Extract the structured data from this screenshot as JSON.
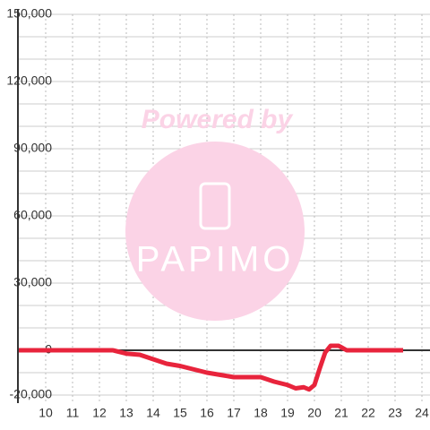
{
  "chart_data": {
    "type": "line",
    "watermark": {
      "line1": "Powered by",
      "line2": "PAPIMO"
    },
    "x": [
      9,
      12.5,
      13,
      13.5,
      14,
      14.5,
      15,
      15.5,
      16,
      16.5,
      17,
      17.5,
      18,
      18.5,
      19,
      19.3,
      19.6,
      19.8,
      20,
      20.2,
      20.4,
      20.6,
      20.9,
      21.2,
      23.3
    ],
    "series": [
      {
        "color": "#e8243c",
        "values": [
          0,
          0,
          -1500,
          -2000,
          -4000,
          -6000,
          -7000,
          -8500,
          -10000,
          -11000,
          -12000,
          -12000,
          -12000,
          -14000,
          -15500,
          -17000,
          -16500,
          -17500,
          -15500,
          -8000,
          -1000,
          2000,
          2000,
          0,
          0
        ]
      }
    ],
    "xlim": [
      9,
      24.3
    ],
    "xticks": [
      10,
      11,
      12,
      13,
      14,
      15,
      16,
      17,
      18,
      19,
      20,
      21,
      22,
      23,
      24
    ],
    "ylim": [
      -20000,
      150000
    ],
    "yticks": [
      {
        "value": -20000,
        "label": "-20,000"
      },
      0,
      {
        "value": 30000,
        "label": "30,000"
      },
      {
        "value": 60000,
        "label": "60,000"
      },
      {
        "value": 90000,
        "label": "90,000"
      },
      {
        "value": 120000,
        "label": "120,000"
      },
      {
        "value": 150000,
        "label": "150,000"
      }
    ],
    "minor_yticks": [
      -10000,
      10000,
      20000,
      40000,
      50000,
      70000,
      80000,
      100000,
      110000,
      130000,
      140000
    ],
    "grid": true
  }
}
